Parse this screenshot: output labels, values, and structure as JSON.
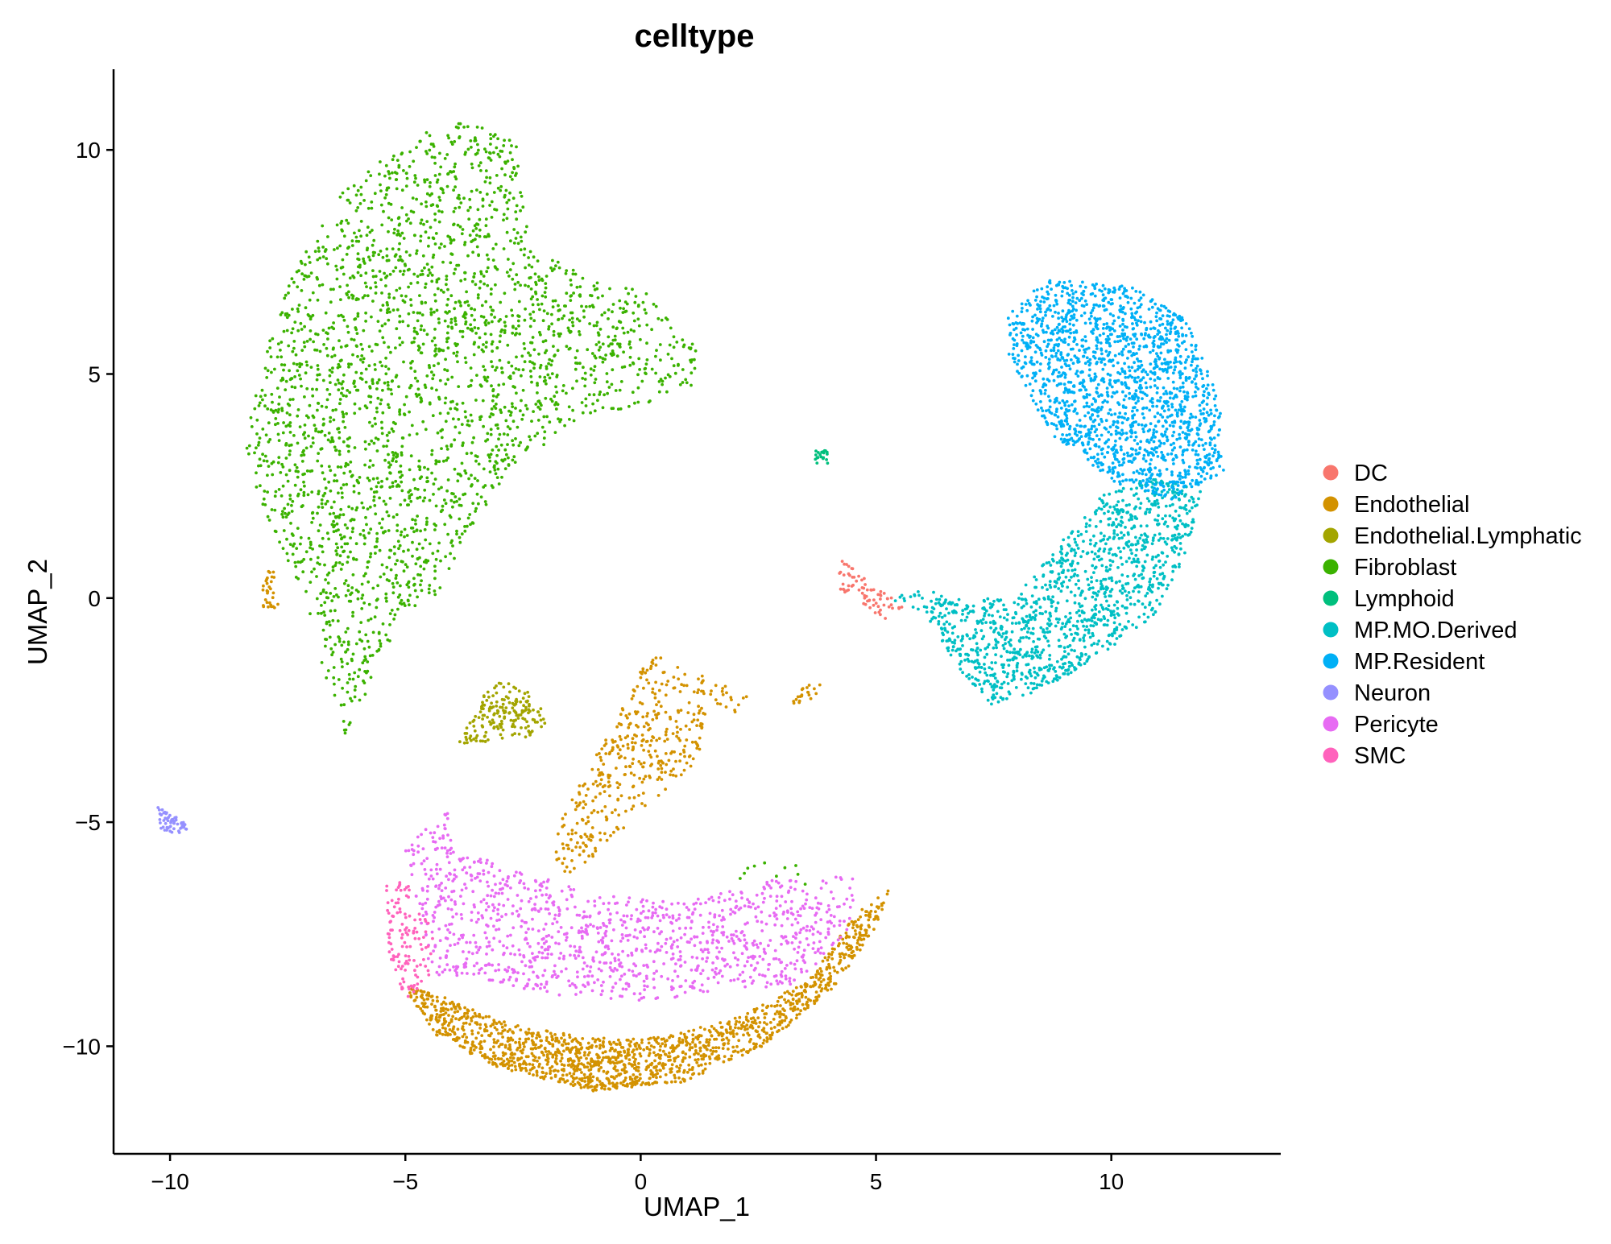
{
  "chart_data": {
    "type": "scatter",
    "title": "celltype",
    "xlabel": "UMAP_1",
    "ylabel": "UMAP_2",
    "xlim": [
      -11.2,
      13.6
    ],
    "ylim": [
      -12.4,
      11.8
    ],
    "x_ticks": [
      -10,
      -5,
      0,
      5,
      10
    ],
    "x_tick_labels": [
      "−10",
      "−5",
      "0",
      "5",
      "10"
    ],
    "y_ticks": [
      -10,
      -5,
      0,
      5,
      10
    ],
    "y_tick_labels": [
      "−10",
      "−5",
      "0",
      "5",
      "10"
    ],
    "grid": false,
    "legend_position": "right",
    "series": [
      {
        "name": "DC",
        "color": "#F8766D"
      },
      {
        "name": "Endothelial",
        "color": "#D39200"
      },
      {
        "name": "Endothelial.Lymphatic",
        "color": "#93AA00"
      },
      {
        "name": "Fibroblast",
        "color": "#00BA38"
      },
      {
        "name": "Lymphoid",
        "color": "#00C19F"
      },
      {
        "name": "MP.MO.Derived",
        "color": "#00B9E3"
      },
      {
        "name": "MP.Resident",
        "color": "#619CFF"
      },
      {
        "name": "Neuron",
        "color": "#9D8DFF"
      },
      {
        "name": "Pericyte",
        "color": "#F067D6"
      },
      {
        "name": "SMC",
        "color": "#FF61C3"
      }
    ],
    "point_colors": {
      "DC": "#F8766D",
      "Endothelial": "#D39200",
      "Endothelial.Lymphatic": "#A3A500",
      "Fibroblast": "#3BB200",
      "Lymphoid": "#00BF7D",
      "MP.MO.Derived": "#00BFC4",
      "MP.Resident": "#00B0F6",
      "Neuron": "#9590FF",
      "Pericyte": "#E76BF3",
      "SMC": "#FF62BC"
    },
    "clusters": [
      {
        "series": "Fibroblast",
        "polygon": [
          [
            -8.2,
            4.8
          ],
          [
            -7.4,
            7.2
          ],
          [
            -6.4,
            9.0
          ],
          [
            -4.8,
            10.4
          ],
          [
            -3.4,
            10.7
          ],
          [
            -2.6,
            10.1
          ],
          [
            -2.5,
            9.0
          ],
          [
            -2.3,
            7.8
          ],
          [
            -1.2,
            7.2
          ],
          [
            0.2,
            6.8
          ],
          [
            1.2,
            5.6
          ],
          [
            1.2,
            4.8
          ],
          [
            0.3,
            4.4
          ],
          [
            -1.3,
            4.0
          ],
          [
            -2.6,
            3.0
          ],
          [
            -3.6,
            1.6
          ],
          [
            -4.2,
            0.2
          ],
          [
            -5.0,
            -0.5
          ],
          [
            -5.4,
            -1.2
          ],
          [
            -5.8,
            -2.2
          ],
          [
            -6.3,
            -3.2
          ],
          [
            -6.6,
            -2.4
          ],
          [
            -7.1,
            0.0
          ],
          [
            -7.9,
            1.6
          ],
          [
            -8.4,
            3.2
          ]
        ],
        "n": 2600
      },
      {
        "series": "Fibroblast",
        "polygon": [
          [
            1.9,
            -5.9
          ],
          [
            3.2,
            -5.8
          ],
          [
            3.6,
            -6.4
          ],
          [
            2.2,
            -6.4
          ]
        ],
        "n": 10
      },
      {
        "series": "Endothelial",
        "polygon": [
          [
            -8.0,
            0.6
          ],
          [
            -7.8,
            0.6
          ],
          [
            -7.7,
            -0.2
          ],
          [
            -8.1,
            -0.4
          ]
        ],
        "n": 30
      },
      {
        "series": "Endothelial",
        "polygon": [
          [
            -1.6,
            -4.6
          ],
          [
            -0.6,
            -2.9
          ],
          [
            0.2,
            -1.2
          ],
          [
            1.1,
            -1.6
          ],
          [
            2.3,
            -2.2
          ],
          [
            2.2,
            -2.7
          ],
          [
            1.4,
            -2.5
          ],
          [
            1.2,
            -3.8
          ],
          [
            0.2,
            -4.6
          ],
          [
            -0.4,
            -5.2
          ],
          [
            -1.0,
            -5.8
          ],
          [
            -1.6,
            -6.2
          ],
          [
            -1.9,
            -5.6
          ]
        ],
        "n": 420
      },
      {
        "series": "Endothelial",
        "polygon": [
          [
            3.2,
            -2.1
          ],
          [
            3.9,
            -1.8
          ],
          [
            3.8,
            -2.2
          ],
          [
            3.2,
            -2.4
          ]
        ],
        "n": 20
      },
      {
        "series": "Endothelial",
        "polygon": [
          [
            -5.1,
            -8.6
          ],
          [
            -4.3,
            -9.8
          ],
          [
            -3.0,
            -10.5
          ],
          [
            -1.0,
            -11.0
          ],
          [
            0.9,
            -10.8
          ],
          [
            2.6,
            -10.0
          ],
          [
            4.1,
            -8.7
          ],
          [
            5.0,
            -7.4
          ],
          [
            5.3,
            -6.5
          ],
          [
            4.6,
            -7.0
          ],
          [
            3.6,
            -8.5
          ],
          [
            2.2,
            -9.3
          ],
          [
            0.5,
            -9.8
          ],
          [
            -1.2,
            -9.8
          ],
          [
            -2.8,
            -9.5
          ],
          [
            -4.2,
            -8.9
          ]
        ],
        "n": 1500
      },
      {
        "series": "Endothelial.Lymphatic",
        "polygon": [
          [
            -3.9,
            -3.3
          ],
          [
            -3.3,
            -2.1
          ],
          [
            -3.0,
            -1.8
          ],
          [
            -2.2,
            -2.2
          ],
          [
            -2.0,
            -2.8
          ],
          [
            -2.4,
            -3.1
          ],
          [
            -3.2,
            -3.2
          ]
        ],
        "n": 180
      },
      {
        "series": "Lymphoid",
        "polygon": [
          [
            3.7,
            3.3
          ],
          [
            4.0,
            3.3
          ],
          [
            4.0,
            3.0
          ],
          [
            3.7,
            3.0
          ]
        ],
        "n": 20
      },
      {
        "series": "DC",
        "polygon": [
          [
            4.2,
            0.9
          ],
          [
            5.2,
            0.1
          ],
          [
            5.6,
            -0.2
          ],
          [
            5.2,
            -0.5
          ],
          [
            4.2,
            0.2
          ]
        ],
        "n": 70
      },
      {
        "series": "MP.MO.Derived",
        "polygon": [
          [
            5.3,
            0.0
          ],
          [
            6.2,
            -0.6
          ],
          [
            6.9,
            -1.8
          ],
          [
            7.4,
            -2.4
          ],
          [
            8.4,
            -2.1
          ],
          [
            9.6,
            -1.4
          ],
          [
            10.9,
            -0.4
          ],
          [
            11.6,
            1.0
          ],
          [
            11.9,
            2.4
          ],
          [
            11.0,
            2.7
          ],
          [
            9.8,
            2.4
          ],
          [
            8.9,
            1.2
          ],
          [
            8.1,
            0.2
          ],
          [
            7.0,
            -0.1
          ],
          [
            6.0,
            0.2
          ]
        ],
        "n": 1300
      },
      {
        "series": "MP.Resident",
        "polygon": [
          [
            7.8,
            6.3
          ],
          [
            8.6,
            7.1
          ],
          [
            10.4,
            7.0
          ],
          [
            11.6,
            6.2
          ],
          [
            12.3,
            4.4
          ],
          [
            12.4,
            2.8
          ],
          [
            11.3,
            2.2
          ],
          [
            10.0,
            2.6
          ],
          [
            8.8,
            3.6
          ],
          [
            8.2,
            4.6
          ],
          [
            7.8,
            5.4
          ]
        ],
        "n": 1700
      },
      {
        "series": "Neuron",
        "polygon": [
          [
            -10.3,
            -4.6
          ],
          [
            -9.6,
            -5.0
          ],
          [
            -9.7,
            -5.3
          ],
          [
            -10.2,
            -5.2
          ]
        ],
        "n": 55
      },
      {
        "series": "Pericyte",
        "polygon": [
          [
            -5.0,
            -5.6
          ],
          [
            -4.1,
            -4.6
          ],
          [
            -4.0,
            -5.6
          ],
          [
            -2.8,
            -6.0
          ],
          [
            -1.0,
            -6.6
          ],
          [
            0.9,
            -6.8
          ],
          [
            2.8,
            -6.3
          ],
          [
            4.6,
            -6.2
          ],
          [
            4.4,
            -7.4
          ],
          [
            3.4,
            -8.6
          ],
          [
            1.6,
            -8.8
          ],
          [
            0.0,
            -9.0
          ],
          [
            -1.8,
            -8.9
          ],
          [
            -3.4,
            -8.5
          ],
          [
            -4.5,
            -8.4
          ]
        ],
        "n": 1200
      },
      {
        "series": "SMC",
        "polygon": [
          [
            -5.4,
            -6.4
          ],
          [
            -5.0,
            -6.3
          ],
          [
            -4.4,
            -7.4
          ],
          [
            -4.5,
            -8.6
          ],
          [
            -5.0,
            -9.0
          ],
          [
            -5.4,
            -8.0
          ]
        ],
        "n": 120
      }
    ]
  }
}
